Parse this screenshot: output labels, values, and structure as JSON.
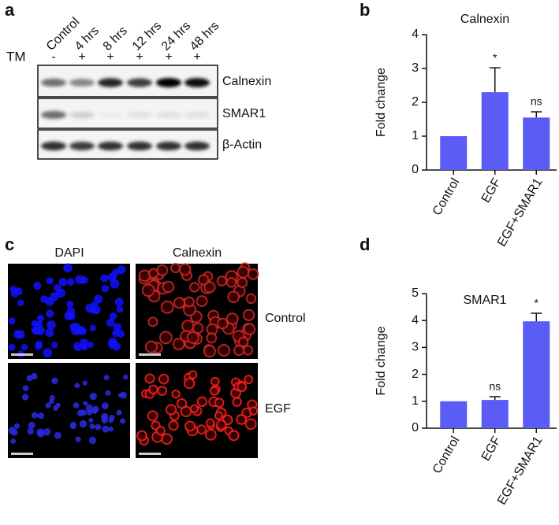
{
  "panel_labels": [
    "a",
    "b",
    "c",
    "d"
  ],
  "blot": {
    "treatment_label": "TM",
    "lanes": [
      "Control",
      "4 hrs",
      "8 hrs",
      "12 hrs",
      "24 hrs",
      "48 hrs"
    ],
    "treatment": [
      "-",
      "+",
      "+",
      "+",
      "+",
      "+"
    ],
    "bands": [
      "Calnexin",
      "SMAR1",
      "β-Actin"
    ]
  },
  "microscopy": {
    "columns": [
      "DAPI",
      "Calnexin"
    ],
    "rows": [
      "Control",
      "EGF"
    ]
  },
  "chart_data": [
    {
      "type": "bar",
      "title": "Calnexin",
      "y_label": "Fold change",
      "categories": [
        "Control",
        "EGF",
        "EGF+SMAR1"
      ],
      "values": [
        1,
        2.3,
        1.55
      ],
      "errors": [
        null,
        0.72,
        0.17
      ],
      "color": "#5b5bf5",
      "ylim": [
        0,
        4
      ],
      "yticks": [
        0,
        1,
        2,
        3,
        4
      ],
      "annotations": [
        {
          "category": "EGF",
          "text": "*"
        },
        {
          "category": "EGF+SMAR1",
          "text": "ns"
        }
      ]
    },
    {
      "type": "bar",
      "title": "SMAR1",
      "y_label": "Fold change",
      "categories": [
        "Control",
        "EGF",
        "EGF+SMAR1"
      ],
      "values": [
        1,
        1.05,
        3.97
      ],
      "errors": [
        null,
        0.12,
        0.3
      ],
      "color": "#5b5bf5",
      "ylim": [
        0,
        5
      ],
      "yticks": [
        0,
        1,
        2,
        3,
        4,
        5
      ],
      "annotations": [
        {
          "category": "EGF",
          "text": "ns"
        },
        {
          "category": "EGF+SMAR1",
          "text": "*"
        }
      ]
    }
  ]
}
